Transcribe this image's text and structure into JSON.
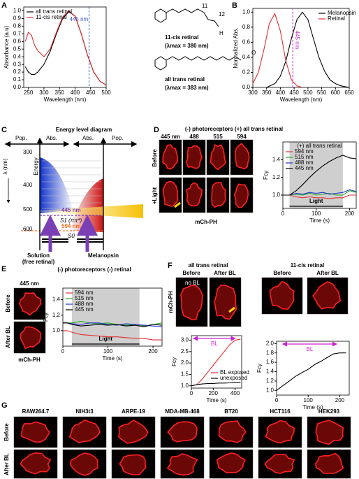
{
  "panel_labels": [
    "A",
    "B",
    "C",
    "D",
    "E",
    "F",
    "G"
  ],
  "structures": {
    "atoms": [
      "11",
      "12",
      "H",
      "O"
    ],
    "cis_label": "11-cis retinal",
    "cis_lambda": "(λmax = 380 nm)",
    "trans_label": "all trans retinal",
    "trans_lambda": "(λmax = 383 nm)"
  },
  "diagram": {
    "title": "Energy level diagram",
    "axis_heads": [
      "Pop.",
      "Abs.",
      "Abs.",
      "Pop."
    ],
    "energy": "Energy",
    "lambda": "λ (nm)",
    "wavelengths": [
      "300",
      "400",
      "500",
      "600"
    ],
    "line_445": "445 nm",
    "line_594": "594 nm",
    "s1": "S1 (ππ*)",
    "s0": "S0",
    "left_label": [
      "Solution",
      "(free retinal)"
    ],
    "right_label": "Melanopsin"
  },
  "panel_D": {
    "header": "(-) photoreceptors   (+)  all trans retinal",
    "columns": [
      "445 nm",
      "488",
      "515",
      "594"
    ],
    "rows": [
      "Before",
      "+Light"
    ],
    "caption": "mCh-PH"
  },
  "panel_E": {
    "header": "(-) photoreceptors   (-) retinal",
    "column": "445 nm",
    "rows": [
      "Before",
      "After BL"
    ],
    "caption": "mCh-PH"
  },
  "panel_F": {
    "left_title": "all trans retinal",
    "right_title": "11-cis retinal",
    "columns": [
      "Before",
      "After BL",
      "Before",
      "After BL"
    ],
    "row": "mCh-PH",
    "note": "no BL"
  },
  "panel_G": {
    "cells": [
      "RAW264.7",
      "NIH3t3",
      "ARPE-19",
      "MDA-MB-468",
      "BT20",
      "HCT116",
      "HEK293"
    ],
    "rows": [
      "Before",
      "After BL"
    ]
  },
  "chart_data": [
    {
      "type": "line",
      "xlabel": "Wavelength (nm)",
      "ylabel": "Absorbance (a.u)",
      "xlim": [
        235,
        500
      ],
      "xticks": [
        250,
        300,
        350,
        400,
        450,
        500
      ],
      "ylim": [
        0,
        1.05
      ],
      "yticks": [
        {
          "value": 0,
          "label": "0.0"
        },
        0.1,
        0.2,
        0.3,
        0.4,
        0.5,
        0.6,
        0.7,
        0.8,
        0.9,
        {
          "value": 1,
          "label": "1.0"
        }
      ],
      "legend": "upper left",
      "vline": {
        "x": 445,
        "label": "445 nm",
        "color": "#3355cc"
      },
      "x": [
        240,
        250,
        260,
        270,
        280,
        300,
        320,
        340,
        360,
        380,
        400,
        420,
        440,
        460,
        480,
        500
      ],
      "series": [
        {
          "name": "all trans retinal",
          "color": "#000000",
          "values": [
            0.27,
            0.2,
            0.17,
            0.17,
            0.2,
            0.3,
            0.47,
            0.7,
            0.9,
            0.99,
            0.93,
            0.7,
            0.42,
            0.2,
            0.08,
            0.03
          ]
        },
        {
          "name": "11-cis retinal",
          "color": "#e03030",
          "values": [
            0.6,
            0.72,
            0.68,
            0.55,
            0.48,
            0.4,
            0.5,
            0.72,
            0.92,
            1.0,
            0.93,
            0.7,
            0.42,
            0.2,
            0.08,
            0.03
          ]
        }
      ]
    },
    {
      "type": "line",
      "xlabel": "Wavelength (nm)",
      "ylabel": "Normalized Abs.",
      "xlim": [
        300,
        650
      ],
      "xticks": [
        300,
        350,
        400,
        450,
        500,
        550,
        600,
        650
      ],
      "ylim": [
        0,
        1.05
      ],
      "yticks": [
        {
          "value": 0,
          "label": "0.0"
        },
        0.2,
        0.4,
        0.6,
        0.8,
        {
          "value": 1,
          "label": "1.0"
        }
      ],
      "legend": "upper right",
      "vline": {
        "x": 445,
        "label": "445 nm",
        "color": "#cc22cc"
      },
      "series": [
        {
          "name": "Melanopsin",
          "color": "#000000",
          "x": [
            350,
            380,
            400,
            420,
            440,
            460,
            480,
            500,
            520,
            540,
            560,
            580,
            600,
            620,
            650
          ],
          "values": [
            0,
            0.05,
            0.15,
            0.35,
            0.65,
            0.9,
            1.0,
            0.9,
            0.65,
            0.4,
            0.22,
            0.1,
            0.05,
            0.02,
            0
          ]
        },
        {
          "name": "Retinal",
          "color": "#e03030",
          "x": [
            300,
            320,
            340,
            360,
            380,
            400,
            420,
            440,
            460,
            480
          ],
          "values": [
            0.05,
            0.2,
            0.5,
            0.85,
            0.98,
            0.75,
            0.35,
            0.1,
            0.02,
            0
          ]
        }
      ]
    },
    {
      "type": "line",
      "title": "(+) all trans retinal",
      "xlabel": "Time (s)",
      "ylabel": "Fcy",
      "xlim": [
        0,
        220
      ],
      "xticks": [
        0,
        100,
        200
      ],
      "ylim": [
        0.85,
        1.6
      ],
      "yticks": [
        {
          "value": 1,
          "label": "1.0"
        },
        1.2,
        1.4
      ],
      "legend": "upper left",
      "shade": {
        "label": "Light",
        "range": [
          20,
          180
        ]
      },
      "x": [
        0,
        10,
        20,
        40,
        60,
        80,
        100,
        120,
        140,
        160,
        180,
        200,
        220
      ],
      "series": [
        {
          "name": "594 nm",
          "color": "#e03030",
          "values": [
            1.0,
            1.0,
            1.0,
            0.98,
            0.97,
            0.98,
            0.97,
            0.97,
            0.96,
            0.97,
            0.97,
            1.0,
            1.0
          ]
        },
        {
          "name": "515 nm",
          "color": "#22aa22",
          "values": [
            1.0,
            1.0,
            1.0,
            1.01,
            1.0,
            1.02,
            1.0,
            1.01,
            1.02,
            1.0,
            1.0,
            1.05,
            1.03
          ]
        },
        {
          "name": "488 nm",
          "color": "#2233cc",
          "values": [
            1.0,
            1.0,
            1.0,
            1.02,
            1.01,
            1.03,
            1.02,
            1.03,
            1.01,
            1.02,
            1.03,
            1.06,
            1.04
          ]
        },
        {
          "name": "445 nm",
          "color": "#000000",
          "values": [
            1.0,
            1.0,
            1.0,
            1.05,
            1.12,
            1.2,
            1.27,
            1.33,
            1.38,
            1.42,
            1.45,
            1.42,
            1.41
          ]
        }
      ]
    },
    {
      "type": "line",
      "xlabel": "Time (s)",
      "ylabel": "Fcy",
      "xlim": [
        0,
        220
      ],
      "xticks": [
        0,
        100,
        200
      ],
      "ylim": [
        0.8,
        1.55
      ],
      "yticks": [
        {
          "value": 1,
          "label": "1.0"
        },
        1.2,
        1.4
      ],
      "legend": "upper left",
      "shade": {
        "label": "Light",
        "range": [
          20,
          170
        ]
      },
      "x": [
        0,
        10,
        20,
        40,
        60,
        80,
        100,
        120,
        140,
        160,
        180,
        200,
        220
      ],
      "series": [
        {
          "name": "594 nm",
          "color": "#e03030",
          "values": [
            1.0,
            1.0,
            0.98,
            0.95,
            0.94,
            0.93,
            0.92,
            0.92,
            0.91,
            0.9,
            0.9,
            0.88,
            0.88
          ]
        },
        {
          "name": "515 nm",
          "color": "#22aa22",
          "values": [
            1.1,
            1.1,
            1.1,
            1.12,
            1.1,
            1.09,
            1.1,
            1.08,
            1.07,
            1.08,
            1.06,
            1.08,
            1.1
          ]
        },
        {
          "name": "488 nm",
          "color": "#2233cc",
          "values": [
            1.1,
            1.1,
            1.09,
            1.08,
            1.1,
            1.1,
            1.08,
            1.07,
            1.09,
            1.08,
            1.07,
            1.06,
            1.05
          ]
        },
        {
          "name": "445 nm",
          "color": "#000000",
          "values": [
            1.1,
            1.1,
            1.08,
            1.06,
            1.07,
            1.08,
            1.07,
            1.08,
            1.06,
            1.07,
            1.05,
            1.08,
            1.07
          ]
        }
      ]
    },
    {
      "type": "line",
      "xlabel": "Time (s)",
      "ylabel": "Fcy",
      "xlim": [
        0,
        460
      ],
      "xticks": [
        0,
        200,
        400
      ],
      "ylim": [
        0.9,
        3.2
      ],
      "yticks": [
        {
          "value": 1,
          "label": "1.0"
        },
        1.5,
        {
          "value": 2,
          "label": "2.0"
        },
        2.5,
        {
          "value": 3,
          "label": "3.0"
        }
      ],
      "legend": "lower right",
      "arrow": {
        "label": "BL",
        "range": [
          20,
          400
        ],
        "color": "#cc22cc"
      },
      "x": [
        0,
        50,
        100,
        150,
        200,
        250,
        300,
        350,
        400,
        450
      ],
      "series": [
        {
          "name": "BL exposed",
          "color": "#e03030",
          "values": [
            1.0,
            1.05,
            1.3,
            1.6,
            1.9,
            2.2,
            2.5,
            2.8,
            3.0,
            3.05
          ]
        },
        {
          "name": "unexposed",
          "color": "#000000",
          "values": [
            1.0,
            1.05,
            1.08,
            1.1,
            1.1,
            1.12,
            1.12,
            1.13,
            1.15,
            1.15
          ]
        }
      ]
    },
    {
      "type": "line",
      "xlabel": "Time (s)",
      "ylabel": "Fcy",
      "xlim": [
        0,
        230
      ],
      "xticks": [
        0,
        100,
        200
      ],
      "ylim": [
        0.9,
        2.05
      ],
      "yticks": [
        {
          "value": 1,
          "label": "1.0"
        },
        1.2,
        1.4,
        1.6,
        1.8,
        {
          "value": 2,
          "label": "2.0"
        }
      ],
      "arrow": {
        "label": "BL",
        "range": [
          20,
          190
        ],
        "color": "#cc22cc"
      },
      "x": [
        0,
        20,
        40,
        60,
        80,
        100,
        120,
        140,
        160,
        180,
        200,
        220
      ],
      "series": [
        {
          "color": "#000000",
          "values": [
            1.0,
            1.1,
            1.2,
            1.3,
            1.38,
            1.45,
            1.55,
            1.62,
            1.7,
            1.78,
            1.8,
            1.8
          ]
        }
      ]
    }
  ]
}
